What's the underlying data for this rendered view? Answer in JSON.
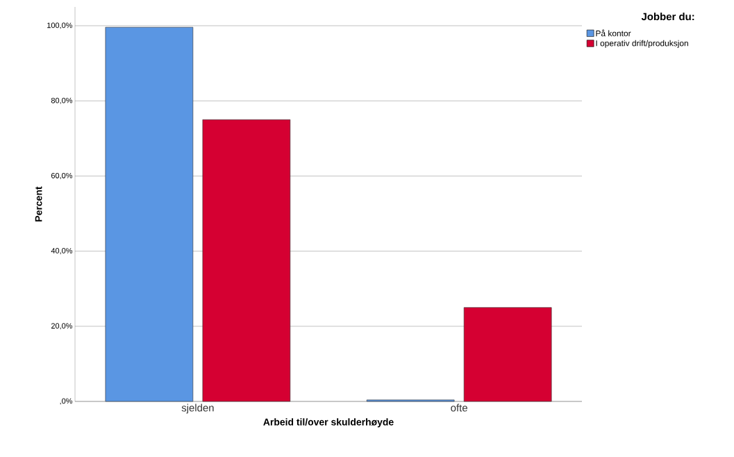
{
  "chart_data": {
    "type": "bar",
    "xlabel": "Arbeid til/over skulderhøyde",
    "ylabel": "Percent",
    "legend_title": "Jobber du:",
    "categories": [
      "sjelden",
      "ofte"
    ],
    "series": [
      {
        "name": "På kontor",
        "color": "#5a96e3",
        "values": [
          99.6,
          0.4
        ]
      },
      {
        "name": "I operativ drift/produksjon",
        "color": "#d50032",
        "values": [
          75.0,
          25.0
        ]
      }
    ],
    "ylim": [
      0,
      105
    ],
    "yticks": [
      {
        "value": 0,
        "label": ",0%"
      },
      {
        "value": 20,
        "label": "20,0%"
      },
      {
        "value": 40,
        "label": "40,0%"
      },
      {
        "value": 60,
        "label": "60,0%"
      },
      {
        "value": 80,
        "label": "80,0%"
      },
      {
        "value": 100,
        "label": "100,0%"
      }
    ],
    "grid": "y",
    "legend": "top right"
  }
}
